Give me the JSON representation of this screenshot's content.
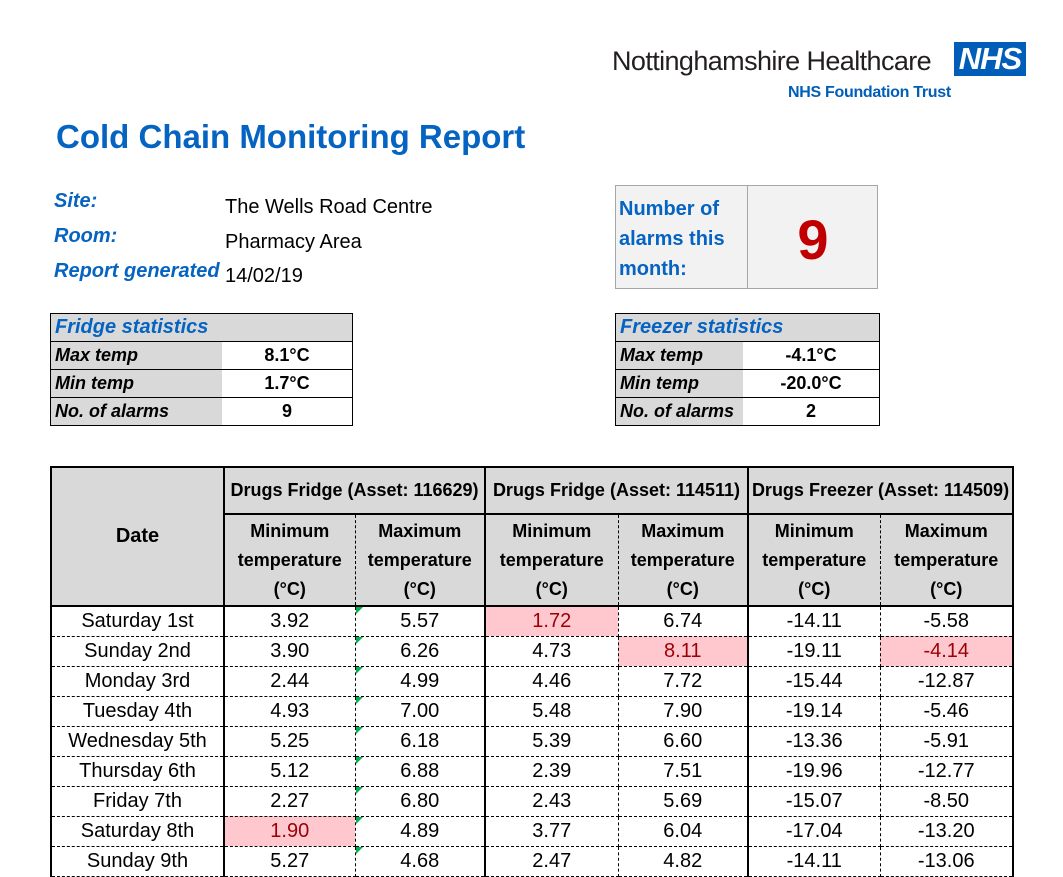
{
  "header": {
    "org_name": "Nottinghamshire Healthcare",
    "nhs_logo": "NHS",
    "org_sub": "NHS Foundation Trust",
    "title": "Cold Chain Monitoring Report"
  },
  "info": {
    "site_label": "Site:",
    "site_value": "The Wells Road Centre",
    "room_label": "Room:",
    "room_value": "Pharmacy Area",
    "generated_label": "Report generated",
    "generated_value": "14/02/19"
  },
  "alarms_box": {
    "label": "Number of alarms this month:",
    "count": "9"
  },
  "fridge_stats": {
    "title": "Fridge statistics",
    "rows": [
      {
        "label": "Max temp",
        "value": "8.1°C"
      },
      {
        "label": "Min temp",
        "value": "1.7°C"
      },
      {
        "label": "No. of alarms",
        "value": "9"
      }
    ]
  },
  "freezer_stats": {
    "title": "Freezer statistics",
    "rows": [
      {
        "label": "Max temp",
        "value": "-4.1°C"
      },
      {
        "label": "Min temp",
        "value": "-20.0°C"
      },
      {
        "label": "No. of alarms",
        "value": "2"
      }
    ]
  },
  "table": {
    "date_header": "Date",
    "groups": [
      "Drugs Fridge (Asset: 116629)",
      "Drugs Fridge (Asset: 114511)",
      "Drugs Freezer (Asset: 114509)"
    ],
    "min_header": [
      "Minimum",
      "temperature",
      "(°C)"
    ],
    "max_header": [
      "Maximum",
      "temperature",
      "(°C)"
    ],
    "rows": [
      {
        "date": "Saturday 1st",
        "v": [
          "3.92",
          "5.57",
          "1.72",
          "6.74",
          "-14.11",
          "-5.58"
        ]
      },
      {
        "date": "Sunday 2nd",
        "v": [
          "3.90",
          "6.26",
          "4.73",
          "8.11",
          "-19.11",
          "-4.14"
        ]
      },
      {
        "date": "Monday 3rd",
        "v": [
          "2.44",
          "4.99",
          "4.46",
          "7.72",
          "-15.44",
          "-12.87"
        ]
      },
      {
        "date": "Tuesday 4th",
        "v": [
          "4.93",
          "7.00",
          "5.48",
          "7.90",
          "-19.14",
          "-5.46"
        ]
      },
      {
        "date": "Wednesday 5th",
        "v": [
          "5.25",
          "6.18",
          "5.39",
          "6.60",
          "-13.36",
          "-5.91"
        ]
      },
      {
        "date": "Thursday 6th",
        "v": [
          "5.12",
          "6.88",
          "2.39",
          "7.51",
          "-19.96",
          "-12.77"
        ]
      },
      {
        "date": "Friday 7th",
        "v": [
          "2.27",
          "6.80",
          "2.43",
          "5.69",
          "-15.07",
          "-8.50"
        ]
      },
      {
        "date": "Saturday 8th",
        "v": [
          "1.90",
          "4.89",
          "3.77",
          "6.04",
          "-17.04",
          "-13.20"
        ]
      },
      {
        "date": "Sunday 9th",
        "v": [
          "5.27",
          "4.68",
          "2.47",
          "4.82",
          "-14.11",
          "-13.06"
        ]
      }
    ],
    "alarm_cells": [
      [
        0,
        2
      ],
      [
        1,
        3
      ],
      [
        1,
        5
      ],
      [
        7,
        0
      ]
    ],
    "alarm_color": "#ffc7ce"
  }
}
